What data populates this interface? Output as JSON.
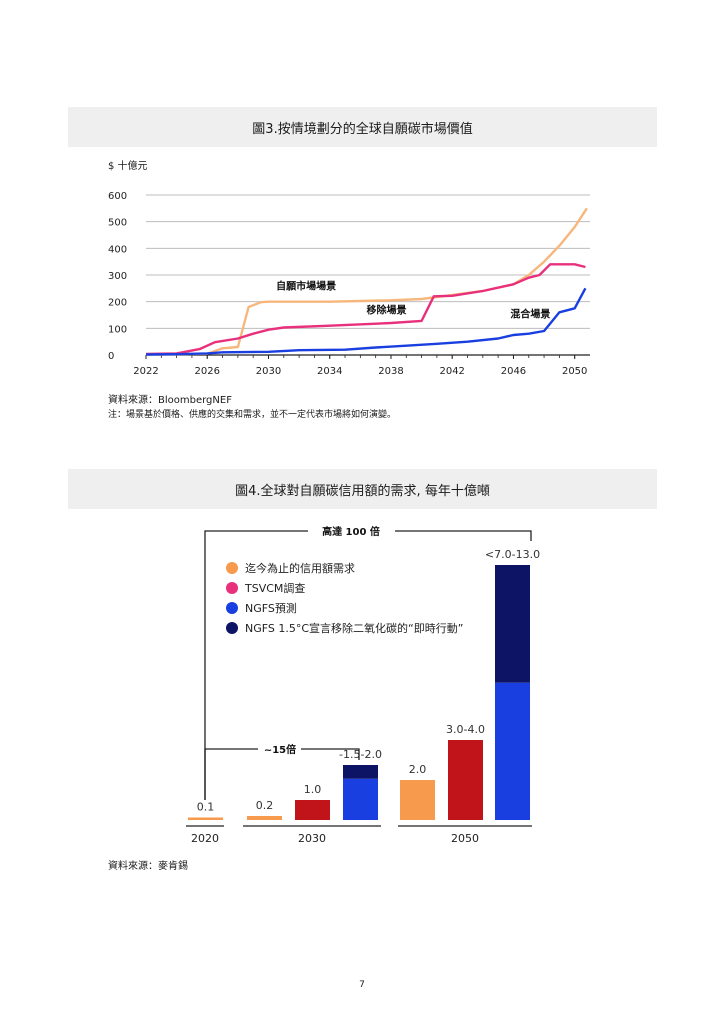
{
  "figure3": {
    "title": "圖3.按情境劃分的全球自願碳市場價值",
    "unit": "$ 十億元",
    "source": "資料來源：BloombergNEF",
    "note": "注：場景基於價格、供應的交集和需求，並不一定代表市場將如何演變。"
  },
  "figure4": {
    "title": "圖4.全球對自願碳信用額的需求, 每年十億噸",
    "source": "資料來源：麥肯錫"
  },
  "page_number": "7",
  "chart_data": [
    {
      "type": "line",
      "title": "圖3.按情境劃分的全球自願碳市場價值",
      "ylabel": "$ 十億元",
      "ylim": [
        0,
        600
      ],
      "yticks": [
        "0",
        "100",
        "200",
        "300",
        "400",
        "500",
        "600"
      ],
      "xlim": [
        2022,
        2051
      ],
      "xticks": [
        "2022",
        "2026",
        "2030",
        "2034",
        "2038",
        "2042",
        "2046",
        "2050"
      ],
      "grid": true,
      "series": [
        {
          "name": "自願市場場景",
          "color": "#f7b77c",
          "points": [
            [
              2022,
              2
            ],
            [
              2024,
              3
            ],
            [
              2026,
              5
            ],
            [
              2027,
              25
            ],
            [
              2028,
              30
            ],
            [
              2028.7,
              180
            ],
            [
              2029.5,
              198
            ],
            [
              2030,
              200
            ],
            [
              2034,
              200
            ],
            [
              2038,
              205
            ],
            [
              2040,
              210
            ],
            [
              2042,
              225
            ],
            [
              2044,
              240
            ],
            [
              2046,
              265
            ],
            [
              2047,
              300
            ],
            [
              2048,
              350
            ],
            [
              2049,
              410
            ],
            [
              2050,
              480
            ],
            [
              2050.8,
              550
            ]
          ]
        },
        {
          "name": "移除場景",
          "color": "#e8307d",
          "points": [
            [
              2022,
              4
            ],
            [
              2024,
              6
            ],
            [
              2025.5,
              22
            ],
            [
              2026.5,
              48
            ],
            [
              2028,
              62
            ],
            [
              2029,
              80
            ],
            [
              2030,
              95
            ],
            [
              2031,
              103
            ],
            [
              2034,
              110
            ],
            [
              2038,
              120
            ],
            [
              2040,
              128
            ],
            [
              2040.8,
              220
            ],
            [
              2042,
              222
            ],
            [
              2044,
              240
            ],
            [
              2046,
              265
            ],
            [
              2047,
              290
            ],
            [
              2047.7,
              300
            ],
            [
              2048.4,
              340
            ],
            [
              2050,
              340
            ],
            [
              2050.7,
              330
            ]
          ]
        },
        {
          "name": "混合場景",
          "color": "#1a3fe0",
          "points": [
            [
              2022,
              2
            ],
            [
              2024,
              3
            ],
            [
              2026,
              6
            ],
            [
              2027,
              10
            ],
            [
              2030,
              12
            ],
            [
              2032,
              18
            ],
            [
              2035,
              20
            ],
            [
              2037,
              28
            ],
            [
              2039,
              35
            ],
            [
              2041,
              42
            ],
            [
              2043,
              50
            ],
            [
              2045,
              62
            ],
            [
              2046,
              75
            ],
            [
              2047,
              80
            ],
            [
              2048,
              90
            ],
            [
              2049,
              160
            ],
            [
              2050,
              175
            ],
            [
              2050.7,
              250
            ]
          ]
        }
      ]
    },
    {
      "type": "bar",
      "title": "圖4.全球對自願碳信用額的需求, 每年十億噸",
      "legend": [
        {
          "label": "迄今為止的信用額需求",
          "color": "#f79a4e"
        },
        {
          "label": "TSVCM調查",
          "color": "#e8307d"
        },
        {
          "label": "NGFS預測",
          "color": "#1a3fe0"
        },
        {
          "label": "NGFS 1.5°C宣言移除二氧化碳的“即時行動”",
          "color": "#0d1466"
        }
      ],
      "groups": [
        "2020",
        "2030",
        "2050"
      ],
      "bars": [
        {
          "group": "2020",
          "label": "0.1",
          "value": 0.1,
          "color": "#f79a4e"
        },
        {
          "group": "2030",
          "label": "0.2",
          "value": 0.2,
          "color": "#f79a4e"
        },
        {
          "group": "2030",
          "label": "1.0",
          "value": 1.0,
          "color": "#c0141a"
        },
        {
          "group": "2030",
          "label": "-1.5-2.0",
          "value": 1.5,
          "extra": 0.5,
          "color": "#1a3fe0",
          "extra_color": "#0d1466"
        },
        {
          "group": "2050",
          "label": "2.0",
          "value": 2.0,
          "color": "#f79a4e"
        },
        {
          "group": "2050",
          "label": "3.0-4.0",
          "value": 4.0,
          "color": "#c0141a"
        },
        {
          "group": "2050",
          "label": "<7.0-13.0",
          "value": 7.0,
          "extra": 6.0,
          "color": "#1a3fe0",
          "extra_color": "#0d1466"
        }
      ],
      "annotations": {
        "big": "高達 100 倍",
        "small": "~15倍"
      }
    }
  ]
}
